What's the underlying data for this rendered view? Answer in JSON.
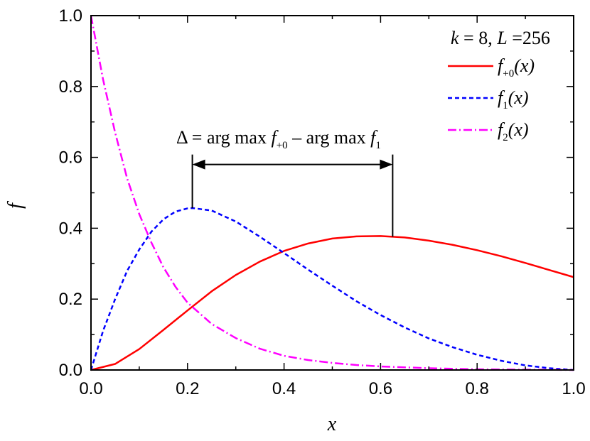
{
  "chart_data": {
    "type": "line",
    "xlabel": "x",
    "ylabel": "f",
    "xlim": [
      0.0,
      1.0
    ],
    "ylim": [
      0.0,
      1.0
    ],
    "xticks": [
      0.0,
      0.2,
      0.4,
      0.6,
      0.8,
      1.0
    ],
    "yticks": [
      0.0,
      0.2,
      0.4,
      0.6,
      0.8,
      1.0
    ],
    "x_tick_labels": [
      "0.0",
      "0.2",
      "0.4",
      "0.6",
      "0.8",
      "1.0"
    ],
    "y_tick_labels": [
      "0.0",
      "0.2",
      "0.4",
      "0.6",
      "0.8",
      "1.0"
    ],
    "legend_title": {
      "k_symbol": "k",
      "k_text": " = 8, ",
      "L_symbol": "L",
      "L_text": " =256"
    },
    "legend_placement": "top-right",
    "grid": false,
    "series": [
      {
        "label_main": "f",
        "label_sub": "+0",
        "label_tail": "(x)",
        "color": "#ff0000",
        "dash": "solid",
        "x": [
          0.0,
          0.05,
          0.1,
          0.15,
          0.2,
          0.25,
          0.3,
          0.35,
          0.4,
          0.45,
          0.5,
          0.55,
          0.6,
          0.65,
          0.7,
          0.75,
          0.8,
          0.85,
          0.9,
          0.95,
          1.0
        ],
        "y": [
          0.0,
          0.017,
          0.059,
          0.113,
          0.168,
          0.222,
          0.268,
          0.306,
          0.336,
          0.357,
          0.371,
          0.377,
          0.378,
          0.374,
          0.365,
          0.353,
          0.338,
          0.321,
          0.302,
          0.282,
          0.262
        ]
      },
      {
        "label_main": "f",
        "label_sub": "1",
        "label_tail": "(x)",
        "color": "#0000ff",
        "dash": "short-dash",
        "x": [
          0.0,
          0.025,
          0.05,
          0.075,
          0.1,
          0.125,
          0.15,
          0.175,
          0.2,
          0.21,
          0.25,
          0.3,
          0.35,
          0.4,
          0.45,
          0.5,
          0.55,
          0.6,
          0.65,
          0.7,
          0.75,
          0.8,
          0.85,
          0.9,
          0.95,
          1.0
        ],
        "y": [
          0.0,
          0.11,
          0.2,
          0.28,
          0.34,
          0.39,
          0.425,
          0.447,
          0.456,
          0.457,
          0.45,
          0.419,
          0.376,
          0.33,
          0.283,
          0.238,
          0.194,
          0.155,
          0.12,
          0.089,
          0.064,
          0.043,
          0.026,
          0.013,
          0.005,
          0.0
        ]
      },
      {
        "label_main": "f",
        "label_sub": "2",
        "label_tail": "(x)",
        "color": "#ff00ff",
        "dash": "dash-dot",
        "x": [
          0.0,
          0.025,
          0.05,
          0.075,
          0.1,
          0.125,
          0.15,
          0.175,
          0.2,
          0.25,
          0.3,
          0.35,
          0.4,
          0.45,
          0.5,
          0.55,
          0.6,
          0.7,
          0.8,
          0.9,
          1.0
        ],
        "y": [
          1.0,
          0.82,
          0.67,
          0.54,
          0.44,
          0.36,
          0.29,
          0.235,
          0.19,
          0.13,
          0.09,
          0.06,
          0.04,
          0.028,
          0.02,
          0.014,
          0.01,
          0.005,
          0.002,
          0.001,
          0.0
        ]
      }
    ],
    "annotation": {
      "delta": "Δ = arg max ",
      "f1": "f",
      "sub1": "+0",
      "middle": " – arg max ",
      "f2": "f",
      "sub2": "1",
      "left_x": 0.21,
      "left_y": 0.457,
      "right_x": 0.625,
      "right_y": 0.376,
      "arrow_y": 0.58
    }
  }
}
